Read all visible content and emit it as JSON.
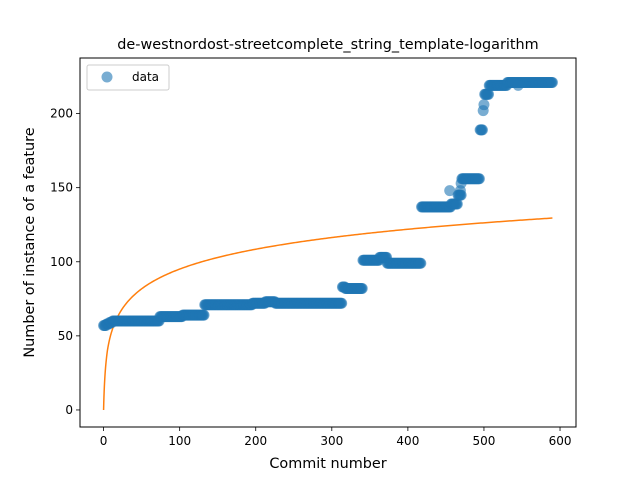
{
  "chart_data": {
    "type": "scatter",
    "title": "de-westnordost-streetcomplete_string_template-logarithm",
    "xlabel": "Commit number",
    "ylabel": "Number of instance of a feature",
    "xlim": [
      -31,
      621
    ],
    "ylim": [
      -11.5,
      237.5
    ],
    "xticks": [
      0,
      100,
      200,
      300,
      400,
      500,
      600
    ],
    "yticks": [
      0,
      50,
      100,
      150,
      200
    ],
    "grid": false,
    "legend": {
      "placement": "top-left",
      "entries": [
        "data"
      ]
    },
    "colors": {
      "data": "#1f77b4",
      "fit": "#ff7f0e"
    },
    "series": [
      {
        "name": "data",
        "kind": "scatter",
        "segments": [
          {
            "x_start": 0,
            "x_end": 3,
            "y": 57
          },
          {
            "x_start": 4,
            "x_end": 7,
            "y": 58
          },
          {
            "x_start": 8,
            "x_end": 11,
            "y": 59
          },
          {
            "x_start": 12,
            "x_end": 73,
            "y": 60
          },
          {
            "x_start": 74,
            "x_end": 103,
            "y": 63
          },
          {
            "x_start": 104,
            "x_end": 132,
            "y": 64
          },
          {
            "x_start": 133,
            "x_end": 195,
            "y": 71
          },
          {
            "x_start": 196,
            "x_end": 212,
            "y": 72
          },
          {
            "x_start": 213,
            "x_end": 225,
            "y": 73
          },
          {
            "x_start": 226,
            "x_end": 313,
            "y": 72
          },
          {
            "x_start": 314,
            "x_end": 317,
            "y": 83
          },
          {
            "x_start": 318,
            "x_end": 340,
            "y": 82
          },
          {
            "x_start": 341,
            "x_end": 362,
            "y": 101
          },
          {
            "x_start": 363,
            "x_end": 372,
            "y": 103
          },
          {
            "x_start": 373,
            "x_end": 417,
            "y": 99
          },
          {
            "x_start": 418,
            "x_end": 456,
            "y": 137
          },
          {
            "x_start": 457,
            "x_end": 465,
            "y": 139
          },
          {
            "x_start": 466,
            "x_end": 470,
            "y": 145
          },
          {
            "x_start": 471,
            "x_end": 494,
            "y": 156
          },
          {
            "x_start": 495,
            "x_end": 498,
            "y": 189
          },
          {
            "x_start": 501,
            "x_end": 506,
            "y": 213
          },
          {
            "x_start": 507,
            "x_end": 530,
            "y": 219
          },
          {
            "x_start": 531,
            "x_end": 590,
            "y": 221
          }
        ],
        "points": [
          [
            455,
            148
          ],
          [
            469,
            148
          ],
          [
            470,
            153
          ],
          [
            499,
            202
          ],
          [
            500,
            206
          ],
          [
            538,
            221
          ],
          [
            545,
            219
          ]
        ]
      },
      {
        "name": "fit",
        "kind": "line",
        "function": "logarithmic",
        "x_range": [
          0,
          590
        ],
        "samples": [
          [
            0,
            0
          ],
          [
            5,
            40
          ],
          [
            20,
            60
          ],
          [
            50,
            77
          ],
          [
            100,
            90
          ],
          [
            200,
            103
          ],
          [
            300,
            113
          ],
          [
            400,
            120
          ],
          [
            500,
            125
          ],
          [
            590,
            129.5
          ]
        ]
      }
    ]
  }
}
